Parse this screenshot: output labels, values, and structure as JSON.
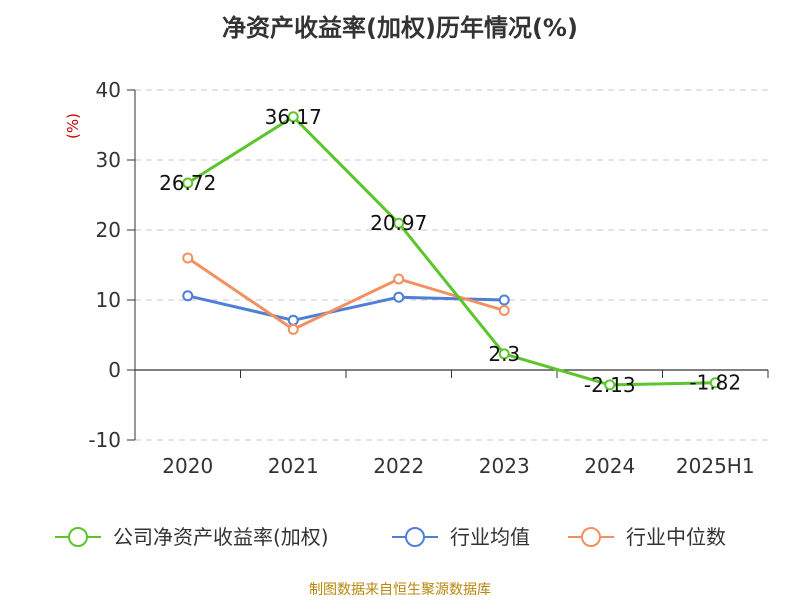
{
  "chart_data": {
    "type": "line",
    "title": "净资产收益率(加权)历年情况(%)",
    "ylabel": "(%)",
    "xlabel": "",
    "categories": [
      "2020",
      "2021",
      "2022",
      "2023",
      "2024",
      "2025H1"
    ],
    "ylim": [
      -10,
      40
    ],
    "yticks": [
      -10,
      0,
      10,
      20,
      30,
      40
    ],
    "grid": "horizontal-dashed",
    "legend_position": "bottom",
    "series": [
      {
        "name": "公司净资产收益率(加权)",
        "color": "#5cc52c",
        "values": [
          26.72,
          36.17,
          20.97,
          2.3,
          -2.13,
          -1.82
        ],
        "labels": [
          "26.72",
          "36.17",
          "20.97",
          "2.3",
          "-2.13",
          "-1.82"
        ]
      },
      {
        "name": "行业均值",
        "color": "#4f7fd6",
        "values": [
          10.6,
          7.1,
          10.4,
          10.0,
          null,
          null
        ]
      },
      {
        "name": "行业中位数",
        "color": "#f39060",
        "values": [
          16.0,
          5.8,
          13.0,
          8.5,
          null,
          null
        ]
      }
    ],
    "source": "制图数据来自恒生聚源数据库"
  }
}
